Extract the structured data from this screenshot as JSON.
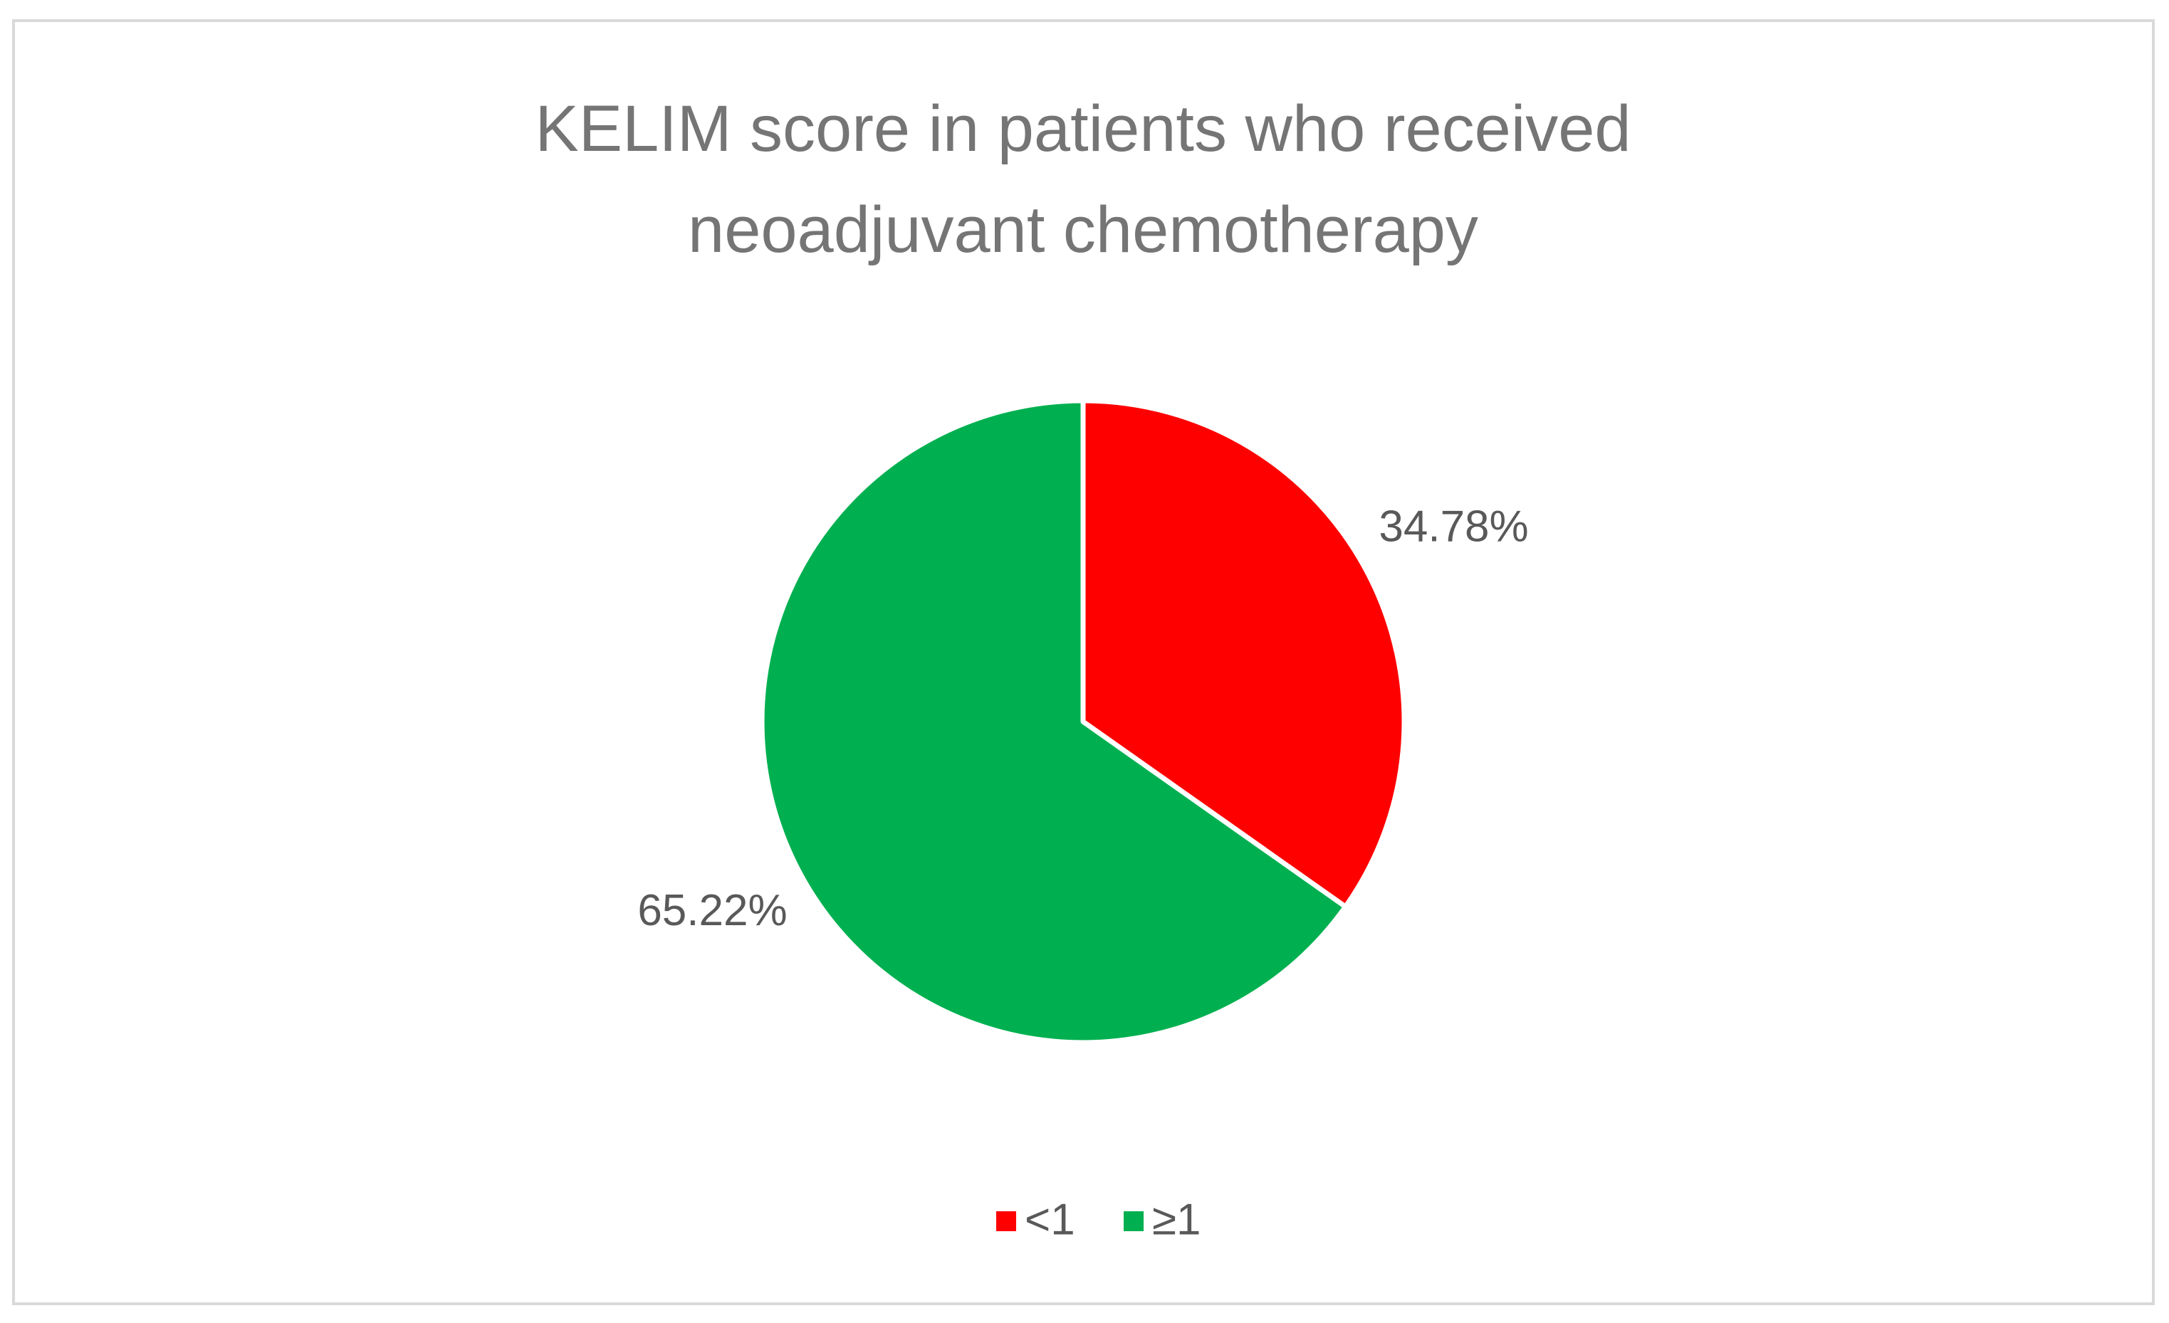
{
  "chart_data": {
    "type": "pie",
    "title": "KELIM score in patients who received neoadjuvant chemotherapy",
    "categories": [
      "<1",
      "≥1"
    ],
    "values": [
      34.78,
      65.22
    ],
    "value_labels": [
      "34.78%",
      "65.22%"
    ],
    "colors": [
      "#ff0000",
      "#00b050"
    ],
    "legend": "bottom"
  }
}
